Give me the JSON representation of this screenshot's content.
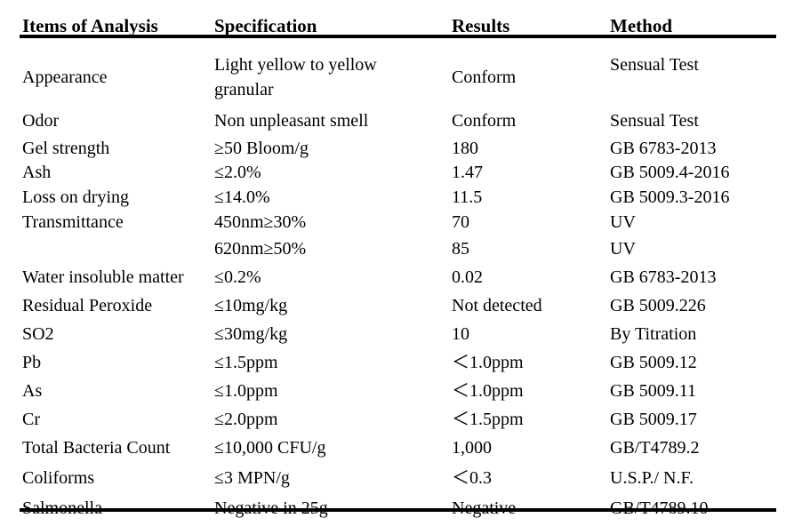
{
  "table": {
    "headers": {
      "item": "Items of Analysis",
      "spec": "Specification",
      "result": "Results",
      "method": "Method"
    },
    "rows": [
      {
        "item": "Appearance",
        "spec": "Light yellow to yellow granular",
        "result": "Conform",
        "method": "Sensual Test"
      },
      {
        "item": "Odor",
        "spec": "Non unpleasant smell",
        "result": "Conform",
        "method": "Sensual Test"
      },
      {
        "item": "Gel strength",
        "spec": "≥50 Bloom/g",
        "result": "180",
        "method": "GB 6783-2013"
      },
      {
        "item": "Ash",
        "spec": "≤2.0%",
        "result": "1.47",
        "method": "GB 5009.4-2016"
      },
      {
        "item": "Loss on drying",
        "spec": "≤14.0%",
        "result": "11.5",
        "method": "GB 5009.3-2016"
      },
      {
        "item": "Transmittance",
        "spec": "450nm≥30%",
        "result": "70",
        "method": "UV"
      },
      {
        "item": "",
        "spec": "620nm≥50%",
        "result": "85",
        "method": "UV"
      },
      {
        "item": "Water insoluble matter",
        "spec": "≤0.2%",
        "result": "0.02",
        "method": "GB 6783-2013"
      },
      {
        "item": "Residual Peroxide",
        "spec": "≤10mg/kg",
        "result": "Not detected",
        "method": "GB 5009.226"
      },
      {
        "item": "SO2",
        "spec": "≤30mg/kg",
        "result": "10",
        "method": "By Titration"
      },
      {
        "item": "Pb",
        "spec": "≤1.5ppm",
        "result": "＜1.0ppm",
        "method": "GB 5009.12"
      },
      {
        "item": "As",
        "spec": "≤1.0ppm",
        "result": "＜1.0ppm",
        "method": "GB 5009.11"
      },
      {
        "item": "Cr",
        "spec": "≤2.0ppm",
        "result": "＜1.5ppm",
        "method": "GB 5009.17"
      },
      {
        "item": "Total Bacteria Count",
        "spec": "≤10,000 CFU/g",
        "result": "1,000",
        "method": "GB/T4789.2"
      },
      {
        "item": "Coliforms",
        "spec": "≤3 MPN/g",
        "result": "＜0.3",
        "method": "U.S.P./ N.F."
      },
      {
        "item": "Salmonella",
        "spec": "Negative in 25g",
        "result": "Negative",
        "method": "GB/T4789.10"
      }
    ]
  }
}
